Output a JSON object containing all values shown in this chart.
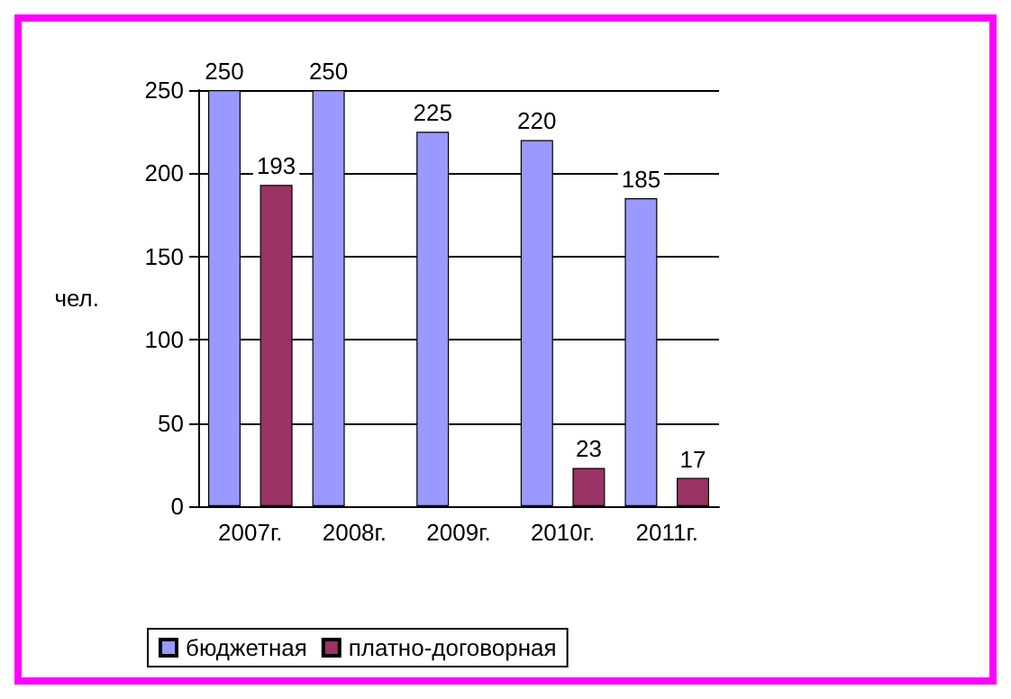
{
  "chart_data": {
    "type": "bar",
    "ylabel": "чел.",
    "categories": [
      "2007г.",
      "2008г.",
      "2009г.",
      "2010г.",
      "2011г."
    ],
    "series": [
      {
        "name": "бюджетная",
        "color": "#9999ff",
        "values": [
          250,
          250,
          225,
          220,
          185
        ]
      },
      {
        "name": "платно-договорная",
        "color": "#993366",
        "values": [
          193,
          null,
          null,
          23,
          17
        ]
      }
    ],
    "ylim": [
      0,
      250
    ],
    "yticks": [
      0,
      50,
      100,
      150,
      200,
      250
    ],
    "grid": "y",
    "legend": "bottom",
    "data_labels": true
  }
}
